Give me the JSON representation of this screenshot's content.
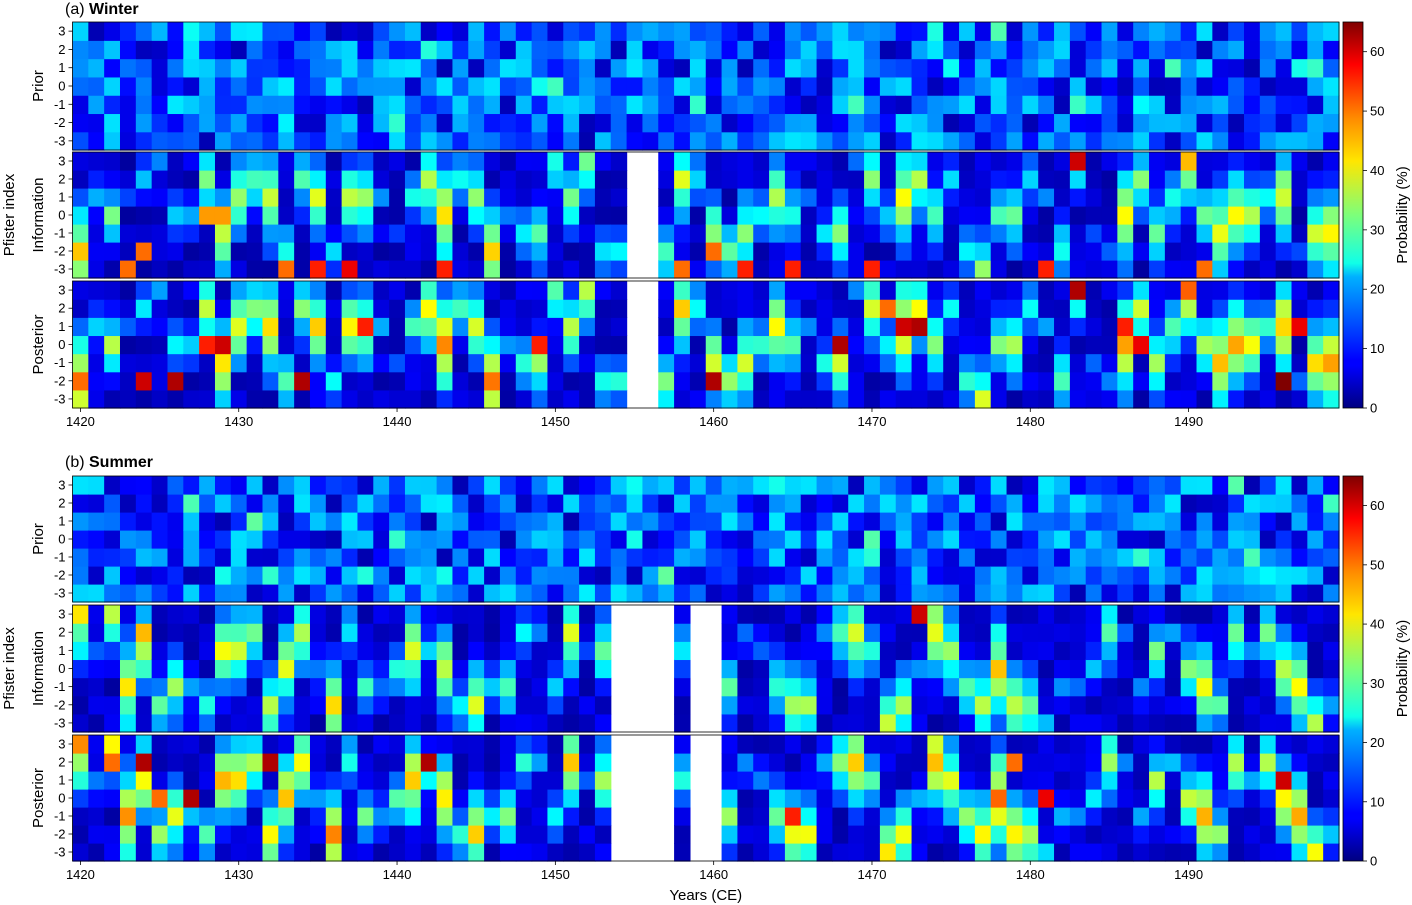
{
  "chart_data": {
    "type": "heatmap",
    "x_range": [
      1420,
      1499
    ],
    "xticks": [
      1420,
      1430,
      1440,
      1450,
      1460,
      1470,
      1480,
      1490
    ],
    "xlabel": "Years (CE)",
    "ylabel": "Pfister index",
    "y_levels": [
      -3,
      -2,
      -1,
      0,
      1,
      2,
      3
    ],
    "row_labels": [
      "Prior",
      "Information",
      "Posterior"
    ],
    "colorbar": {
      "label": "Probability (%)",
      "range": [
        0,
        65
      ],
      "ticks": [
        0,
        10,
        20,
        30,
        40,
        50,
        60
      ],
      "colormap": "jet"
    },
    "panels": [
      {
        "tag": "(a)",
        "name": "Winter",
        "missing_years": [
          [
            1455,
            1456
          ]
        ]
      },
      {
        "tag": "(b)",
        "name": "Summer",
        "missing_years": [
          [
            1454,
            1457
          ],
          [
            1459,
            1460
          ]
        ]
      }
    ],
    "highlights": {
      "winter_information": [
        {
          "year": 1483,
          "index": 3,
          "value": 60
        },
        {
          "year": 1428,
          "index": 0,
          "value": 47
        },
        {
          "year": 1429,
          "index": 0,
          "value": 47
        },
        {
          "year": 1423,
          "index": -3,
          "value": 50
        },
        {
          "year": 1424,
          "index": -2,
          "value": 50
        },
        {
          "year": 1433,
          "index": -3,
          "value": 50
        },
        {
          "year": 1435,
          "index": -3,
          "value": 55
        },
        {
          "year": 1437,
          "index": -3,
          "value": 58
        },
        {
          "year": 1443,
          "index": -3,
          "value": 55
        },
        {
          "year": 1458,
          "index": -3,
          "value": 50
        },
        {
          "year": 1460,
          "index": -2,
          "value": 50
        },
        {
          "year": 1462,
          "index": -3,
          "value": 55
        },
        {
          "year": 1465,
          "index": -3,
          "value": 55
        },
        {
          "year": 1470,
          "index": -3,
          "value": 55
        },
        {
          "year": 1481,
          "index": -3,
          "value": 55
        },
        {
          "year": 1491,
          "index": -3,
          "value": 50
        }
      ],
      "winter_posterior": [
        {
          "year": 1483,
          "index": 3,
          "value": 62
        },
        {
          "year": 1472,
          "index": 1,
          "value": 60
        },
        {
          "year": 1473,
          "index": 1,
          "value": 62
        },
        {
          "year": 1471,
          "index": 2,
          "value": 50
        },
        {
          "year": 1428,
          "index": 0,
          "value": 55
        },
        {
          "year": 1429,
          "index": 0,
          "value": 60
        },
        {
          "year": 1438,
          "index": 1,
          "value": 55
        },
        {
          "year": 1449,
          "index": 0,
          "value": 55
        },
        {
          "year": 1468,
          "index": 0,
          "value": 62
        },
        {
          "year": 1424,
          "index": -2,
          "value": 60
        },
        {
          "year": 1426,
          "index": -2,
          "value": 62
        },
        {
          "year": 1434,
          "index": -2,
          "value": 62
        },
        {
          "year": 1460,
          "index": -2,
          "value": 62
        },
        {
          "year": 1496,
          "index": -2,
          "value": 65
        },
        {
          "year": 1497,
          "index": 1,
          "value": 58
        },
        {
          "year": 1486,
          "index": 1,
          "value": 55
        },
        {
          "year": 1487,
          "index": 0,
          "value": 58
        }
      ],
      "summer_information": [
        {
          "year": 1473,
          "index": 3,
          "value": 60
        },
        {
          "year": 1424,
          "index": 2,
          "value": 45
        }
      ],
      "summer_posterior": [
        {
          "year": 1424,
          "index": 2,
          "value": 62
        },
        {
          "year": 1432,
          "index": 2,
          "value": 62
        },
        {
          "year": 1442,
          "index": 2,
          "value": 62
        },
        {
          "year": 1427,
          "index": 0,
          "value": 62
        },
        {
          "year": 1496,
          "index": 1,
          "value": 60
        },
        {
          "year": 1465,
          "index": -1,
          "value": 55
        },
        {
          "year": 1481,
          "index": 0,
          "value": 58
        },
        {
          "year": 1479,
          "index": 2,
          "value": 50
        },
        {
          "year": 1422,
          "index": 2,
          "value": 50
        },
        {
          "year": 1425,
          "index": 0,
          "value": 50
        }
      ]
    }
  }
}
